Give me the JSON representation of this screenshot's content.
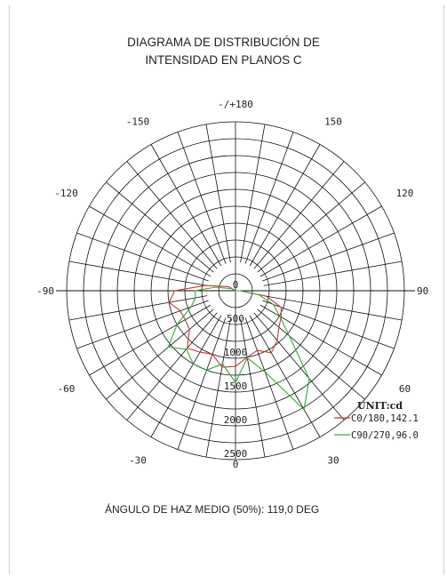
{
  "chart_data": {
    "type": "polar",
    "title": [
      "DIAGRAMA DE DISTRIBUCIÓN DE",
      "INTENSIDAD EN PLANOS C"
    ],
    "angle_labels": [
      {
        "angle": 180,
        "text": "-/+180"
      },
      {
        "angle": -150,
        "text": "-150"
      },
      {
        "angle": 150,
        "text": "150"
      },
      {
        "angle": -120,
        "text": "-120"
      },
      {
        "angle": 120,
        "text": "120"
      },
      {
        "angle": -90,
        "text": "-90"
      },
      {
        "angle": 90,
        "text": "90"
      },
      {
        "angle": -60,
        "text": "-60"
      },
      {
        "angle": 60,
        "text": "60"
      },
      {
        "angle": -30,
        "text": "-30"
      },
      {
        "angle": 30,
        "text": "30"
      }
    ],
    "radial_labels": [
      "0",
      "500",
      "1000",
      "1500",
      "2000",
      "2500"
    ],
    "radial_max": 2500,
    "radial_ring_count": 10,
    "radial_spoke_step_deg": 10,
    "unit_label": "UNIT:cd",
    "series": [
      {
        "name": "C0/180,142.1",
        "color": "#cc3333",
        "points": [
          [
            -180,
            0
          ],
          [
            -120,
            120
          ],
          [
            -100,
            450
          ],
          [
            -90,
            900
          ],
          [
            -80,
            1000
          ],
          [
            -70,
            870
          ],
          [
            -60,
            860
          ],
          [
            -50,
            890
          ],
          [
            -40,
            1110
          ],
          [
            -30,
            1050
          ],
          [
            -20,
            1000
          ],
          [
            -10,
            1150
          ],
          [
            0,
            1120
          ],
          [
            10,
            1000
          ],
          [
            20,
            940
          ],
          [
            30,
            1060
          ],
          [
            40,
            960
          ],
          [
            50,
            840
          ],
          [
            60,
            780
          ],
          [
            70,
            720
          ],
          [
            80,
            460
          ],
          [
            90,
            60
          ],
          [
            120,
            0
          ],
          [
            180,
            0
          ]
        ]
      },
      {
        "name": "C90/270,96.0",
        "color": "#33aa33",
        "points": [
          [
            -180,
            0
          ],
          [
            -120,
            60
          ],
          [
            -100,
            300
          ],
          [
            -90,
            600
          ],
          [
            -80,
            600
          ],
          [
            -70,
            700
          ],
          [
            -60,
            1000
          ],
          [
            -50,
            1300
          ],
          [
            -40,
            1130
          ],
          [
            -30,
            1250
          ],
          [
            -20,
            1250
          ],
          [
            -10,
            1100
          ],
          [
            0,
            1360
          ],
          [
            10,
            1010
          ],
          [
            20,
            1280
          ],
          [
            30,
            2030
          ],
          [
            40,
            1700
          ],
          [
            50,
            1040
          ],
          [
            60,
            760
          ],
          [
            70,
            600
          ],
          [
            80,
            350
          ],
          [
            90,
            80
          ],
          [
            120,
            0
          ],
          [
            180,
            0
          ]
        ]
      }
    ]
  },
  "footer": "ÁNGULO DE HAZ MEDIO (50%): 119,0 DEG"
}
